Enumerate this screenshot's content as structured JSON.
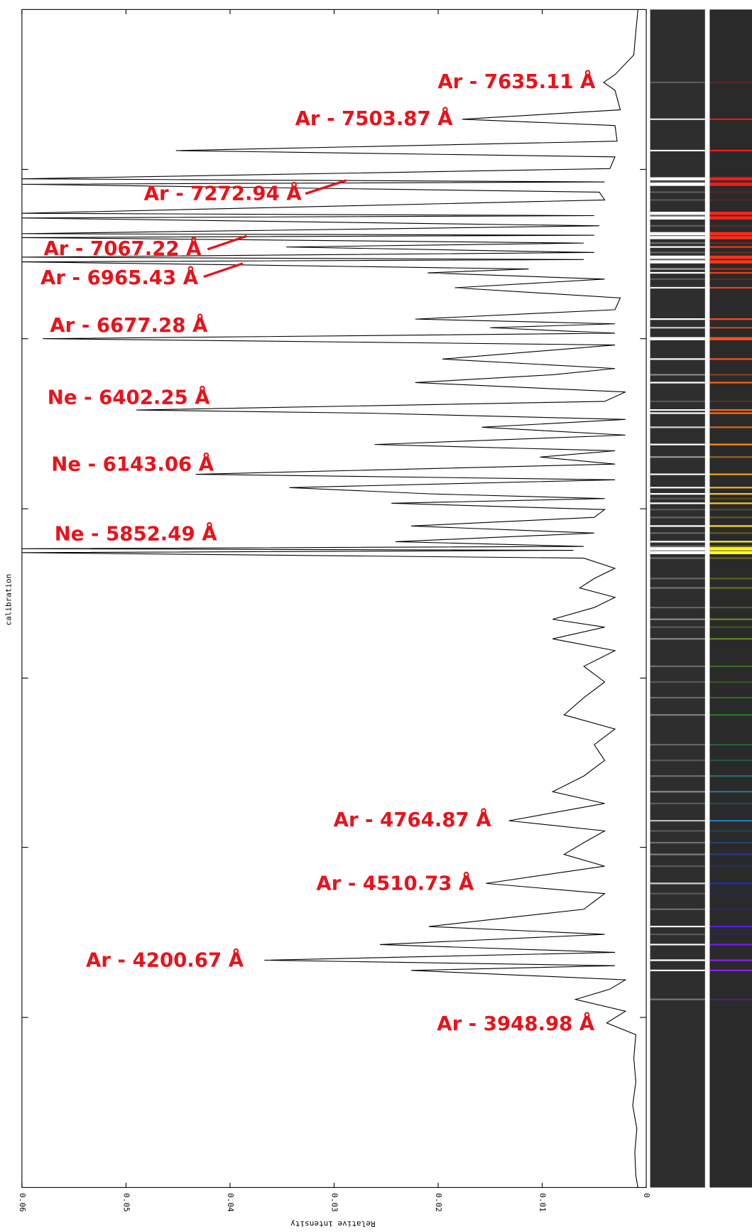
{
  "chart_data": {
    "type": "line",
    "xlabel": "calibration",
    "ylabel": "Relative intensity",
    "xlim": [
      12,
      1515
    ],
    "xticks": [
      216,
      432,
      649,
      865,
      1081,
      1298
    ],
    "ylim": [
      0,
      0.06
    ],
    "yticks": [
      0.06,
      0.05,
      0.04,
      0.03,
      0.02,
      0.01,
      0
    ],
    "color": "#000000",
    "annotation_color": "#e8131b",
    "annotations": [
      "Ar - 7635.11 Å",
      "Ar - 7503.87 Å",
      "Ar - 7272.94 Å",
      "Ar - 7067.22 Å",
      "Ar - 6965.43 Å",
      "Ar - 6677.28 Å",
      "Ne - 6402.25 Å",
      "Ne - 6143.06 Å",
      "Ne - 5852.49 Å",
      "Ar - 4764.87 Å",
      "Ar - 4510.73 Å",
      "Ar - 4200.67 Å",
      "Ar - 3948.98 Å"
    ],
    "x": [
      12,
      40,
      70,
      95,
      105,
      115,
      140,
      152,
      160,
      180,
      192,
      200,
      215,
      228,
      232,
      235,
      245,
      255,
      272,
      275,
      278,
      288,
      298,
      300,
      303,
      310,
      315,
      322,
      328,
      331,
      334,
      343,
      348,
      356,
      367,
      380,
      395,
      407,
      413,
      418,
      425,
      432,
      440,
      458,
      470,
      478,
      488,
      500,
      512,
      523,
      527,
      535,
      545,
      555,
      567,
      575,
      583,
      592,
      605,
      612,
      622,
      630,
      636,
      642,
      650,
      660,
      671,
      680,
      691,
      697,
      700,
      702,
      705,
      712,
      725,
      738,
      750,
      762,
      775,
      790,
      800,
      815,
      830,
      850,
      870,
      890,
      912,
      930,
      950,
      970,
      990,
      1010,
      1025,
      1047,
      1060,
      1075,
      1090,
      1105,
      1127,
      1140,
      1160,
      1182,
      1192,
      1205,
      1215,
      1225,
      1232,
      1238,
      1250,
      1262,
      1275,
      1290,
      1305,
      1320,
      1350,
      1380,
      1410,
      1440,
      1470,
      1500,
      1515
    ],
    "values": [
      0.0008,
      0.001,
      0.0012,
      0.003,
      0.0041,
      0.003,
      0.0025,
      0.0177,
      0.003,
      0.0028,
      0.0452,
      0.003,
      0.0035,
      0.06,
      0.004,
      0.06,
      0.0045,
      0.004,
      0.06,
      0.005,
      0.06,
      0.0045,
      0.06,
      0.005,
      0.06,
      0.006,
      0.0346,
      0.005,
      0.06,
      0.006,
      0.06,
      0.0113,
      0.021,
      0.004,
      0.0184,
      0.0025,
      0.003,
      0.0222,
      0.003,
      0.015,
      0.003,
      0.058,
      0.003,
      0.0196,
      0.003,
      0.009,
      0.0222,
      0.002,
      0.004,
      0.049,
      0.0267,
      0.002,
      0.0158,
      0.002,
      0.0261,
      0.003,
      0.0102,
      0.003,
      0.0433,
      0.003,
      0.0343,
      0.0207,
      0.004,
      0.0245,
      0.004,
      0.005,
      0.0226,
      0.005,
      0.0241,
      0.006,
      0.06,
      0.007,
      0.06,
      0.006,
      0.003,
      0.005,
      0.0064,
      0.003,
      0.005,
      0.009,
      0.004,
      0.009,
      0.003,
      0.006,
      0.004,
      0.006,
      0.0079,
      0.003,
      0.005,
      0.004,
      0.006,
      0.009,
      0.004,
      0.0132,
      0.004,
      0.006,
      0.0079,
      0.004,
      0.0154,
      0.004,
      0.006,
      0.0209,
      0.004,
      0.0256,
      0.003,
      0.0367,
      0.003,
      0.0226,
      0.002,
      0.0035,
      0.0068,
      0.002,
      0.0038,
      0.001,
      0.0012,
      0.001,
      0.0013,
      0.0009,
      0.0011,
      0.001,
      0.0008
    ]
  }
}
